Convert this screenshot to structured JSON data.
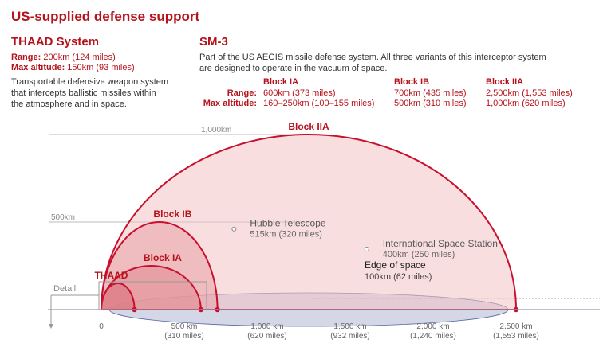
{
  "header": {
    "title": "US-supplied defense support"
  },
  "thaad": {
    "name": "THAAD System",
    "range_label": "Range:",
    "range_value": "200km (124 miles)",
    "alt_label": "Max altitude:",
    "alt_value": "150km (93 miles)",
    "desc_lines": [
      "Transportable defensive weapon system",
      "that intercepts ballistic missiles within",
      "the atmosphere and in space."
    ]
  },
  "sm3": {
    "name": "SM-3",
    "desc_lines": [
      "Part of the US AEGIS missile defense system. All three variants of this interceptor system",
      "are designed to operate in the vacuum of space."
    ],
    "range_label": "Range:",
    "alt_label": "Max altitude:",
    "variants": [
      {
        "name": "Block IA",
        "range": "600km (373 miles)",
        "alt": "160–250km (100–155 miles)"
      },
      {
        "name": "Block IB",
        "range": "700km (435 miles)",
        "alt": "500km (310 miles)"
      },
      {
        "name": "Block IIA",
        "range": "2,500km (1,553 miles)",
        "alt": "1,000km (620 miles)"
      }
    ]
  },
  "chart_data": {
    "type": "area",
    "x_unit": "km",
    "xlim": [
      0,
      2500
    ],
    "x_ticks": [
      {
        "value": 0,
        "label": "0",
        "sub": ""
      },
      {
        "value": 500,
        "label": "500 km",
        "sub": "(310 miles)"
      },
      {
        "value": 1000,
        "label": "1,000 km",
        "sub": "(620 miles)"
      },
      {
        "value": 1500,
        "label": "1,500 km",
        "sub": "(932 miles)"
      },
      {
        "value": 2000,
        "label": "2,000 km",
        "sub": "(1,240 miles)"
      },
      {
        "value": 2500,
        "label": "2,500 km",
        "sub": "(1,553 miles)"
      }
    ],
    "y_refs": [
      {
        "value": 1000,
        "label": "1,000km"
      },
      {
        "value": 500,
        "label": "500km"
      }
    ],
    "envelopes": [
      {
        "name": "Block IIA",
        "range": 2500,
        "altitude": 1000,
        "color": "#c8102e",
        "fill": "#f2c2c5",
        "label_x": 1250
      },
      {
        "name": "Block IB",
        "range": 700,
        "altitude": 500,
        "color": "#c8102e",
        "fill": "#e8a0a5",
        "label_x": 430
      },
      {
        "name": "Block IA",
        "range": 600,
        "altitude": 250,
        "color": "#c8102e",
        "fill": "#e08a90",
        "label_x": 370
      },
      {
        "name": "THAAD",
        "range": 200,
        "altitude": 150,
        "color": "#c8102e",
        "fill": "#d97078",
        "label_x": 60
      }
    ],
    "annotations": [
      {
        "name": "Hubble Telescope",
        "detail": "515km (320 miles)",
        "x": 800,
        "altitude": 515
      },
      {
        "name": "International Space Station",
        "detail": "400km (250 miles)",
        "x": 1600,
        "altitude": 400
      }
    ],
    "edge_of_space": {
      "name": "Edge of space",
      "detail": "100km (62 miles)",
      "altitude": 100
    },
    "detail_label": "Detail",
    "colors": {
      "accent": "#b5121b",
      "ground": "#9a9ab0",
      "space": "#9fa6c8"
    }
  }
}
